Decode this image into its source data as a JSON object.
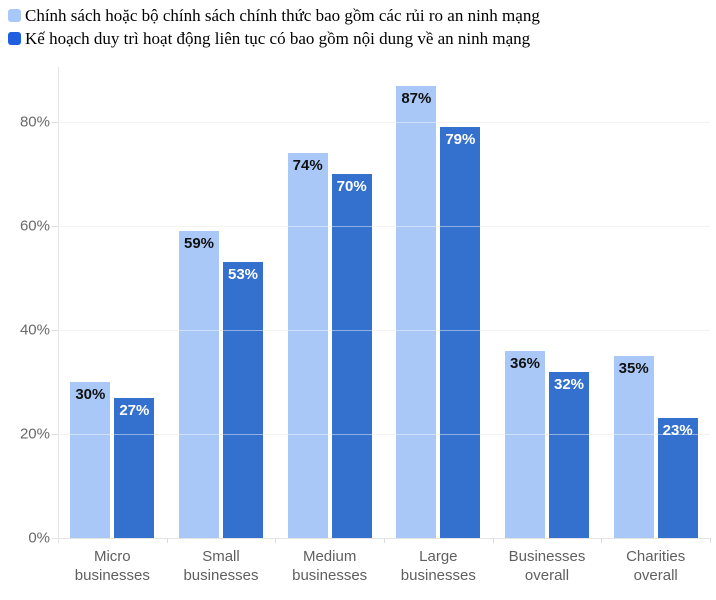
{
  "legend": {
    "items": [
      {
        "label": "Chính sách hoặc bộ chính sách chính thức bao gồm các rủi ro an ninh mạng",
        "color": "#a8c7fa"
      },
      {
        "label": "Kế hoạch duy trì hoạt động liên tục có bao gồm nội dung về an ninh mạng",
        "color": "#1f5fe0"
      }
    ]
  },
  "chart_data": {
    "type": "bar",
    "title": "",
    "xlabel": "",
    "ylabel": "",
    "categories": [
      "Micro businesses",
      "Small businesses",
      "Medium businesses",
      "Large businesses",
      "Businesses overall",
      "Charities overall"
    ],
    "series": [
      {
        "name": "Chính sách hoặc bộ chính sách chính thức bao gồm các rủi ro an ninh mạng",
        "color": "#a9c8f7",
        "label_text_color": "#111111",
        "values": [
          30,
          59,
          74,
          87,
          36,
          35
        ]
      },
      {
        "name": "Kế hoạch duy trì hoạt động liên tục có bao gồm nội dung về an ninh mạng",
        "color": "#3470cd",
        "label_text_color": "#ffffff",
        "values": [
          27,
          53,
          70,
          79,
          32,
          23
        ]
      }
    ],
    "value_suffix": "%",
    "yticks": [
      0,
      20,
      40,
      60,
      80
    ],
    "ytick_labels": [
      "0%",
      "20%",
      "40%",
      "60%",
      "80%"
    ],
    "ylim": [
      0,
      90.6
    ],
    "grid": true,
    "legend_position": "top-left"
  }
}
